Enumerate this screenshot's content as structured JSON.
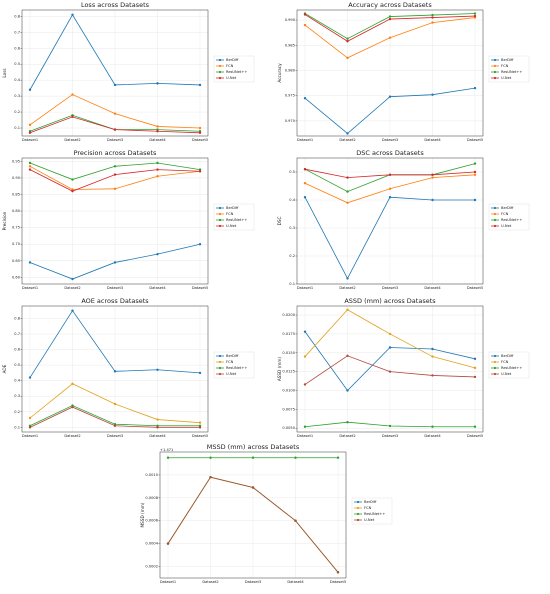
{
  "chart_data": [
    {
      "type": "line",
      "title": "Loss across Datasets",
      "y_label": "Loss",
      "categories": [
        "Dataset1",
        "Dataset2",
        "Dataset3",
        "Dataset4",
        "Dataset5"
      ],
      "series": [
        {
          "name": "BerDiff",
          "color": "#1f77b4",
          "values": [
            0.34,
            0.81,
            0.37,
            0.38,
            0.37
          ]
        },
        {
          "name": "FCN",
          "color": "#ff7f0e",
          "values": [
            0.12,
            0.31,
            0.19,
            0.11,
            0.1
          ]
        },
        {
          "name": "ResUNet++",
          "color": "#2ca02c",
          "values": [
            0.08,
            0.18,
            0.09,
            0.09,
            0.08
          ]
        },
        {
          "name": "U-Net",
          "color": "#d62728",
          "values": [
            0.07,
            0.17,
            0.09,
            0.08,
            0.07
          ]
        }
      ],
      "ylim": [
        0.05,
        0.84
      ],
      "yticks": [
        0.1,
        0.2,
        0.3,
        0.4,
        0.5,
        0.6,
        0.7,
        0.8
      ],
      "grid": true,
      "legend": "right"
    },
    {
      "type": "line",
      "title": "Accuracy across Datasets",
      "y_label": "Accuracy",
      "categories": [
        "Dataset1",
        "Dataset2",
        "Dataset3",
        "Dataset4",
        "Dataset5"
      ],
      "series": [
        {
          "name": "BerDiff",
          "color": "#1f77b4",
          "values": [
            0.9745,
            0.9675,
            0.9748,
            0.9752,
            0.9765
          ]
        },
        {
          "name": "FCN",
          "color": "#ff7f0e",
          "values": [
            0.989,
            0.9825,
            0.9865,
            0.9895,
            0.9905
          ]
        },
        {
          "name": "ResUNet++",
          "color": "#2ca02c",
          "values": [
            0.9913,
            0.9863,
            0.9907,
            0.991,
            0.9913
          ]
        },
        {
          "name": "U-Net",
          "color": "#d62728",
          "values": [
            0.9911,
            0.9858,
            0.9902,
            0.9905,
            0.9908
          ]
        }
      ],
      "ylim": [
        0.967,
        0.992
      ],
      "yticks": [
        {
          "value": 0.97,
          "label": "0.970"
        },
        0.975,
        {
          "value": 0.98,
          "label": "0.980"
        },
        0.985,
        {
          "value": 0.99,
          "label": "0.990"
        }
      ],
      "grid": true,
      "legend": "right"
    },
    {
      "type": "line",
      "title": "Precision across Datasets",
      "y_label": "Precision",
      "categories": [
        "Dataset1",
        "Dataset2",
        "Dataset3",
        "Dataset4",
        "Dataset5"
      ],
      "series": [
        {
          "name": "BerDiff",
          "color": "#1f77b4",
          "values": [
            0.645,
            0.595,
            0.645,
            0.67,
            0.7
          ]
        },
        {
          "name": "FCN",
          "color": "#ff7f0e",
          "values": [
            0.935,
            0.865,
            0.867,
            0.905,
            0.92
          ]
        },
        {
          "name": "ResUNet++",
          "color": "#2ca02c",
          "values": [
            0.945,
            0.895,
            0.935,
            0.945,
            0.925
          ]
        },
        {
          "name": "U-Net",
          "color": "#d62728",
          "values": [
            0.925,
            0.86,
            0.91,
            0.925,
            0.92
          ]
        }
      ],
      "ylim": [
        0.58,
        0.96
      ],
      "yticks": [
        {
          "value": 0.6,
          "label": "0.60"
        },
        0.65,
        {
          "value": 0.7,
          "label": "0.70"
        },
        0.75,
        {
          "value": 0.8,
          "label": "0.80"
        },
        0.85,
        {
          "value": 0.9,
          "label": "0.90"
        },
        0.95
      ],
      "grid": true,
      "legend": "right"
    },
    {
      "type": "line",
      "title": "DSC across Datasets",
      "y_label": "DSC",
      "categories": [
        "Dataset1",
        "Dataset2",
        "Dataset3",
        "Dataset4",
        "Dataset5"
      ],
      "series": [
        {
          "name": "BerDiff",
          "color": "#1f77b4",
          "values": [
            0.41,
            0.12,
            0.41,
            0.4,
            0.4
          ]
        },
        {
          "name": "FCN",
          "color": "#ff7f0e",
          "values": [
            0.46,
            0.39,
            0.44,
            0.48,
            0.49
          ]
        },
        {
          "name": "ResUNet++",
          "color": "#2ca02c",
          "values": [
            0.51,
            0.43,
            0.49,
            0.49,
            0.53
          ]
        },
        {
          "name": "U-Net",
          "color": "#d62728",
          "values": [
            0.51,
            0.48,
            0.49,
            0.49,
            0.5
          ]
        }
      ],
      "ylim": [
        0.1,
        0.55
      ],
      "yticks": [
        0.1,
        0.2,
        0.3,
        0.4,
        0.5
      ],
      "grid": true,
      "legend": "right"
    },
    {
      "type": "line",
      "title": "AOE across Datasets",
      "y_label": "AOE",
      "categories": [
        "Dataset1",
        "Dataset2",
        "Dataset3",
        "Dataset4",
        "Dataset5"
      ],
      "series": [
        {
          "name": "BerDiff",
          "color": "#1f77b4",
          "values": [
            0.42,
            0.85,
            0.46,
            0.47,
            0.45
          ]
        },
        {
          "name": "FCN",
          "color": "#e0a21b",
          "values": [
            0.16,
            0.38,
            0.25,
            0.15,
            0.13
          ]
        },
        {
          "name": "ResUNet++",
          "color": "#2ca02c",
          "values": [
            0.11,
            0.24,
            0.12,
            0.11,
            0.11
          ]
        },
        {
          "name": "U-Net",
          "color": "#b5473a",
          "values": [
            0.1,
            0.23,
            0.11,
            0.1,
            0.1
          ]
        }
      ],
      "ylim": [
        0.07,
        0.88
      ],
      "yticks": [
        0.1,
        0.2,
        0.3,
        0.4,
        0.5,
        0.6,
        0.7,
        0.8
      ],
      "grid": true,
      "legend": "right"
    },
    {
      "type": "line",
      "title": "ASSD (mm) across Datasets",
      "y_label": "ASSD (mm)",
      "categories": [
        "Dataset1",
        "Dataset2",
        "Dataset3",
        "Dataset4",
        "Dataset5"
      ],
      "series": [
        {
          "name": "BerDiff",
          "color": "#1f77b4",
          "values": [
            0.0178,
            0.01,
            0.0157,
            0.0155,
            0.0142
          ]
        },
        {
          "name": "FCN",
          "color": "#e0a21b",
          "values": [
            0.0145,
            0.0207,
            0.0175,
            0.0145,
            0.013
          ]
        },
        {
          "name": "ResUNet++",
          "color": "#2ca02c",
          "values": [
            0.0052,
            0.0058,
            0.0053,
            0.0052,
            0.0052
          ]
        },
        {
          "name": "U-Net",
          "color": "#b5473a",
          "values": [
            0.0108,
            0.0146,
            0.0125,
            0.012,
            0.0118
          ]
        }
      ],
      "ylim": [
        0.0045,
        0.0212
      ],
      "yticks": [
        {
          "value": 0.005,
          "label": "0.0050"
        },
        0.0075,
        {
          "value": 0.01,
          "label": "0.0100"
        },
        0.0125,
        {
          "value": 0.015,
          "label": "0.0150"
        },
        0.0175,
        {
          "value": 0.02,
          "label": "0.0200"
        }
      ],
      "grid": true,
      "legend": "right"
    },
    {
      "type": "line",
      "title": "MSSD (mm) across Datasets",
      "y_label": "MSSD (mm)",
      "offset_label": "+1.471",
      "categories": [
        "Dataset1",
        "Dataset2",
        "Dataset3",
        "Dataset4",
        "Dataset5"
      ],
      "series": [
        {
          "name": "BerDiff",
          "color": "#1f77b4",
          "values": [
            0.0004,
            0.00098,
            0.00089,
            0.0006,
            0.00015
          ]
        },
        {
          "name": "FCN",
          "color": "#e0a21b",
          "values": [
            0.0004,
            0.00098,
            0.00089,
            0.0006,
            0.00015
          ]
        },
        {
          "name": "ResUNet++",
          "color": "#2ca02c",
          "values": [
            0.00115,
            0.00115,
            0.00115,
            0.00115,
            0.00115
          ]
        },
        {
          "name": "U-Net",
          "color": "#a0522d",
          "values": [
            0.0004,
            0.00098,
            0.00089,
            0.0006,
            0.00015
          ]
        }
      ],
      "ylim": [
        0.0001,
        0.0012
      ],
      "yticks": [
        0.0002,
        0.0004,
        0.0006,
        0.0008,
        {
          "value": 0.001,
          "label": "0.0010"
        }
      ],
      "grid": true,
      "legend": "right"
    }
  ]
}
